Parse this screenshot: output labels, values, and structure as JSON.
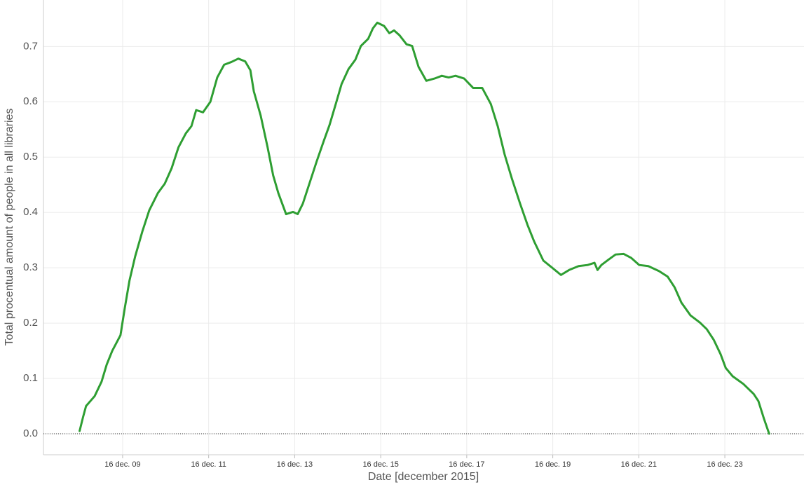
{
  "chart_data": {
    "type": "line",
    "x_label": "Date [december 2015]",
    "y_label": "Total procentual amount of people in all libraries",
    "color": "#2e9e32",
    "grid": true,
    "zero_line": true,
    "xlim": [
      7.16,
      24.84
    ],
    "ylim": [
      -0.038,
      0.784
    ],
    "xticks": [
      {
        "value": 9,
        "label": "16 dec. 09"
      },
      {
        "value": 11,
        "label": "16 dec. 11"
      },
      {
        "value": 13,
        "label": "16 dec. 13"
      },
      {
        "value": 15,
        "label": "16 dec. 15"
      },
      {
        "value": 17,
        "label": "16 dec. 17"
      },
      {
        "value": 19,
        "label": "16 dec. 19"
      },
      {
        "value": 21,
        "label": "16 dec. 21"
      },
      {
        "value": 23,
        "label": "16 dec. 23"
      }
    ],
    "yticks": [
      {
        "value": 0,
        "label": "0.0"
      },
      0.1,
      0.2,
      0.3,
      0.4,
      0.5,
      0.6,
      0.7
    ],
    "x": [
      8.0,
      8.08,
      8.15,
      8.35,
      8.51,
      8.63,
      8.76,
      8.95,
      9.05,
      9.16,
      9.29,
      9.46,
      9.62,
      9.82,
      9.98,
      10.14,
      10.3,
      10.47,
      10.6,
      10.71,
      10.87,
      11.04,
      11.2,
      11.36,
      11.53,
      11.69,
      11.85,
      11.97,
      12.05,
      12.21,
      12.37,
      12.5,
      12.62,
      12.8,
      12.96,
      13.07,
      13.19,
      13.35,
      13.51,
      13.68,
      13.81,
      13.97,
      14.09,
      14.25,
      14.41,
      14.54,
      14.71,
      14.82,
      14.92,
      15.08,
      15.2,
      15.31,
      15.44,
      15.6,
      15.73,
      15.88,
      16.06,
      16.25,
      16.42,
      16.58,
      16.74,
      16.94,
      17.15,
      17.36,
      17.56,
      17.72,
      17.88,
      18.05,
      18.24,
      18.41,
      18.57,
      18.78,
      18.94,
      19.19,
      19.38,
      19.6,
      19.81,
      19.97,
      20.04,
      20.13,
      20.3,
      20.46,
      20.65,
      20.82,
      21.01,
      21.22,
      21.47,
      21.67,
      21.83,
      21.99,
      22.2,
      22.42,
      22.58,
      22.74,
      22.9,
      23.02,
      23.18,
      23.43,
      23.67,
      23.78,
      23.91,
      24.03
    ],
    "values": [
      0.005,
      0.03,
      0.05,
      0.068,
      0.094,
      0.125,
      0.15,
      0.178,
      0.227,
      0.277,
      0.32,
      0.366,
      0.404,
      0.435,
      0.452,
      0.48,
      0.518,
      0.543,
      0.556,
      0.585,
      0.581,
      0.6,
      0.644,
      0.667,
      0.672,
      0.678,
      0.673,
      0.657,
      0.619,
      0.575,
      0.518,
      0.467,
      0.435,
      0.397,
      0.401,
      0.397,
      0.416,
      0.454,
      0.492,
      0.53,
      0.558,
      0.6,
      0.632,
      0.659,
      0.676,
      0.701,
      0.714,
      0.733,
      0.743,
      0.737,
      0.724,
      0.729,
      0.72,
      0.704,
      0.701,
      0.663,
      0.638,
      0.642,
      0.647,
      0.644,
      0.647,
      0.642,
      0.625,
      0.625,
      0.596,
      0.556,
      0.505,
      0.461,
      0.416,
      0.378,
      0.347,
      0.313,
      0.303,
      0.287,
      0.296,
      0.303,
      0.305,
      0.309,
      0.296,
      0.305,
      0.315,
      0.324,
      0.325,
      0.318,
      0.305,
      0.303,
      0.294,
      0.284,
      0.265,
      0.237,
      0.214,
      0.201,
      0.189,
      0.17,
      0.144,
      0.119,
      0.104,
      0.09,
      0.072,
      0.059,
      0.027,
      0.0
    ]
  }
}
